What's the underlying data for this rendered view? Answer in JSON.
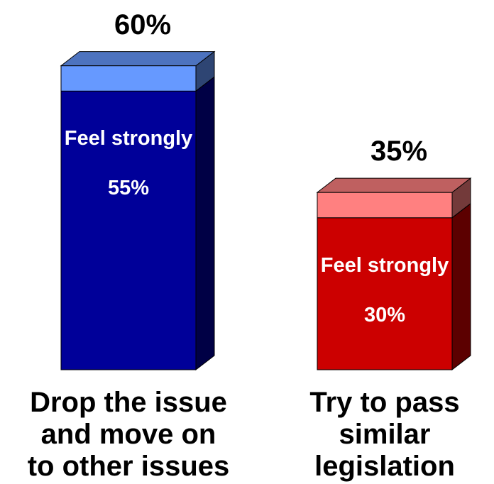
{
  "chart_data": {
    "type": "bar",
    "stacked": true,
    "categories": [
      "Drop the issue\nand move on\nto other issues",
      "Try to pass\nsimilar\nlegislation"
    ],
    "series": [
      {
        "name": "Feel strongly",
        "values": [
          55,
          30
        ],
        "value_labels": [
          "55%",
          "30%"
        ],
        "colors": [
          "#000099",
          "#cc0000"
        ]
      },
      {
        "values": [
          5,
          5
        ],
        "colors": [
          "#6699ff",
          "#ff8080"
        ]
      }
    ],
    "totals": [
      60,
      35
    ],
    "total_labels": [
      "60%",
      "35%"
    ]
  }
}
